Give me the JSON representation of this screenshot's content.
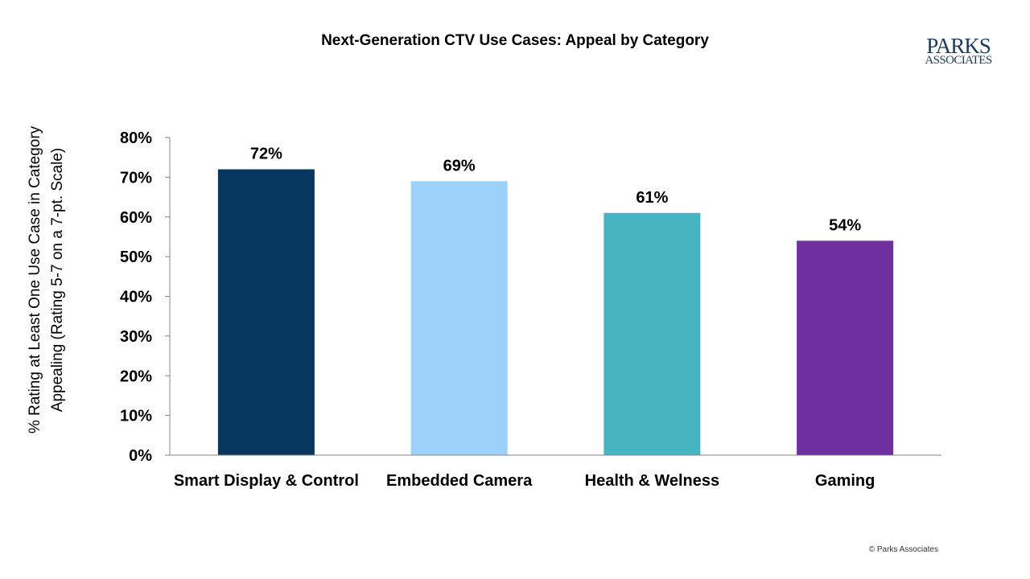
{
  "chart_data": {
    "type": "bar",
    "title": "Next-Generation CTV Use Cases: Appeal by Category",
    "ylabel_lines": [
      "% Rating at Least One Use Case in Category",
      "Appealing (Rating 5-7 on a 7-pt. Scale)"
    ],
    "xlabel": "",
    "categories": [
      "Smart Display & Control",
      "Embedded Camera",
      "Health & Welness",
      "Gaming"
    ],
    "values": [
      72,
      69,
      61,
      54
    ],
    "value_labels": [
      "72%",
      "69%",
      "61%",
      "54%"
    ],
    "colors": [
      "#07365e",
      "#9dd1fb",
      "#47b4c2",
      "#6f2f9f"
    ],
    "ylim": [
      0,
      80
    ],
    "yticks": [
      0,
      10,
      20,
      30,
      40,
      50,
      60,
      70,
      80
    ],
    "ytick_labels": [
      "0%",
      "10%",
      "20%",
      "30%",
      "40%",
      "50%",
      "60%",
      "70%",
      "80%"
    ],
    "grid": false,
    "legend": "none"
  },
  "logo": {
    "line1": "PARKS",
    "line2": "ASSOCIATES"
  },
  "copyright": "© Parks Associates"
}
